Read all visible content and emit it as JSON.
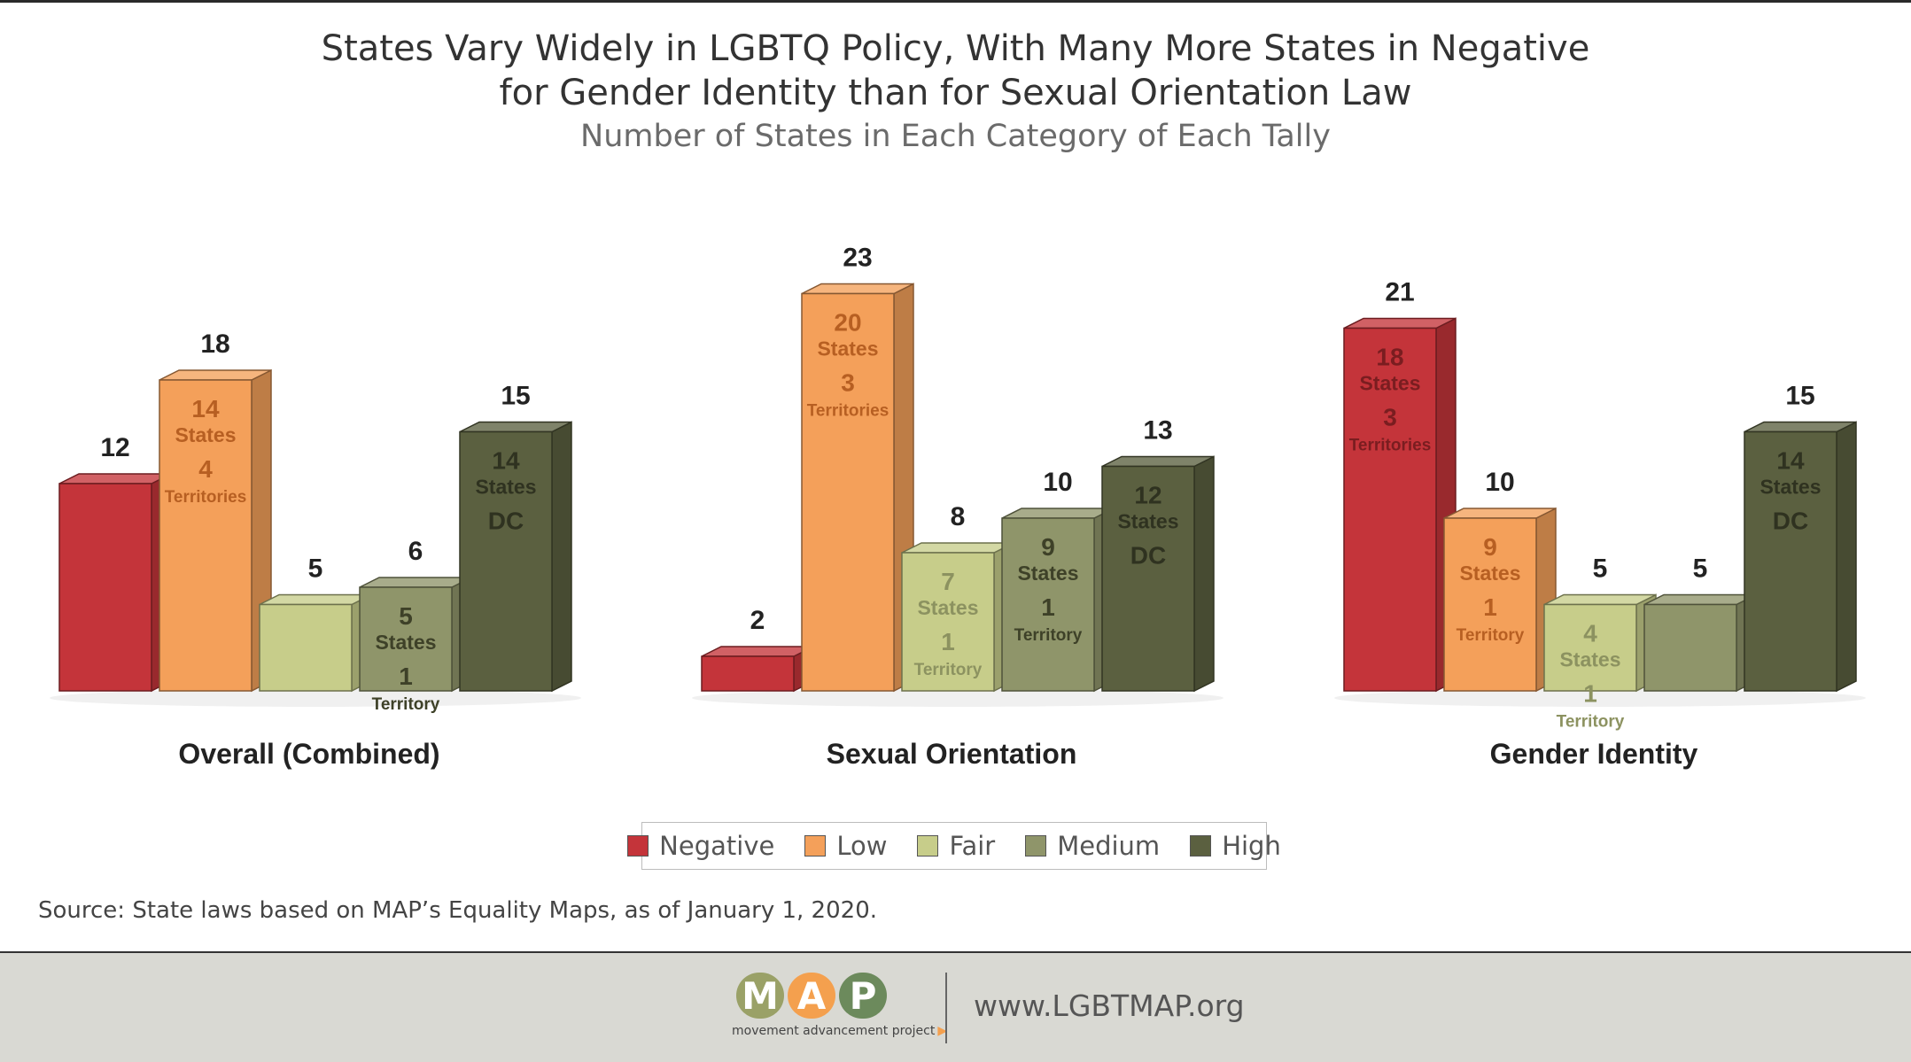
{
  "title_line1": "States Vary Widely in LGBTQ Policy, With Many More States in Negative",
  "title_line2": "for Gender Identity than for Sexual Orientation Law",
  "subtitle": "Number of States in Each Category of Each Tally",
  "chart_data": {
    "type": "bar",
    "style": "3d-grouped",
    "legend_position": "bottom",
    "grid": false,
    "ylim": [
      0,
      23
    ],
    "categories": [
      "Negative",
      "Low",
      "Fair",
      "Medium",
      "High"
    ],
    "colors": {
      "Negative": "#c4343a",
      "Low": "#f4a05a",
      "Fair": "#c7cd8a",
      "Medium": "#8f956a",
      "High": "#5b6040"
    },
    "groups": [
      {
        "name": "Overall (Combined)",
        "bars": [
          {
            "category": "Negative",
            "value": 12,
            "inner": []
          },
          {
            "category": "Low",
            "value": 18,
            "inner": [
              "14",
              "States",
              "4",
              "Territories"
            ]
          },
          {
            "category": "Fair",
            "value": 5,
            "inner": []
          },
          {
            "category": "Medium",
            "value": 6,
            "inner": [
              "5",
              "States",
              "1",
              "Territory"
            ]
          },
          {
            "category": "High",
            "value": 15,
            "inner": [
              "14",
              "States",
              "DC"
            ]
          }
        ]
      },
      {
        "name": "Sexual Orientation",
        "bars": [
          {
            "category": "Negative",
            "value": 2,
            "inner": []
          },
          {
            "category": "Low",
            "value": 23,
            "inner": [
              "20",
              "States",
              "3",
              "Territories"
            ]
          },
          {
            "category": "Fair",
            "value": 8,
            "inner": [
              "7",
              "States",
              "1",
              "Territory"
            ]
          },
          {
            "category": "Medium",
            "value": 10,
            "inner": [
              "9",
              "States",
              "1",
              "Territory"
            ]
          },
          {
            "category": "High",
            "value": 13,
            "inner": [
              "12",
              "States",
              "DC"
            ]
          }
        ]
      },
      {
        "name": "Gender Identity",
        "bars": [
          {
            "category": "Negative",
            "value": 21,
            "inner": [
              "18",
              "States",
              "3",
              "Territories"
            ]
          },
          {
            "category": "Low",
            "value": 10,
            "inner": [
              "9",
              "States",
              "1",
              "Territory"
            ]
          },
          {
            "category": "Fair",
            "value": 5,
            "inner": [
              "4",
              "States",
              "1",
              "Territory"
            ]
          },
          {
            "category": "Medium",
            "value": 5,
            "inner": []
          },
          {
            "category": "High",
            "value": 15,
            "inner": [
              "14",
              "States",
              "DC"
            ]
          }
        ]
      }
    ]
  },
  "source": "Source: State laws based on MAP’s Equality Maps, as of January 1, 2020.",
  "footer": {
    "logo_letters": [
      "M",
      "A",
      "P"
    ],
    "logo_colors": [
      "#9aa167",
      "#f4a04e",
      "#6c8a5c"
    ],
    "logo_tagline": "movement advancement project",
    "website": "www.LGBTMAP.org"
  }
}
